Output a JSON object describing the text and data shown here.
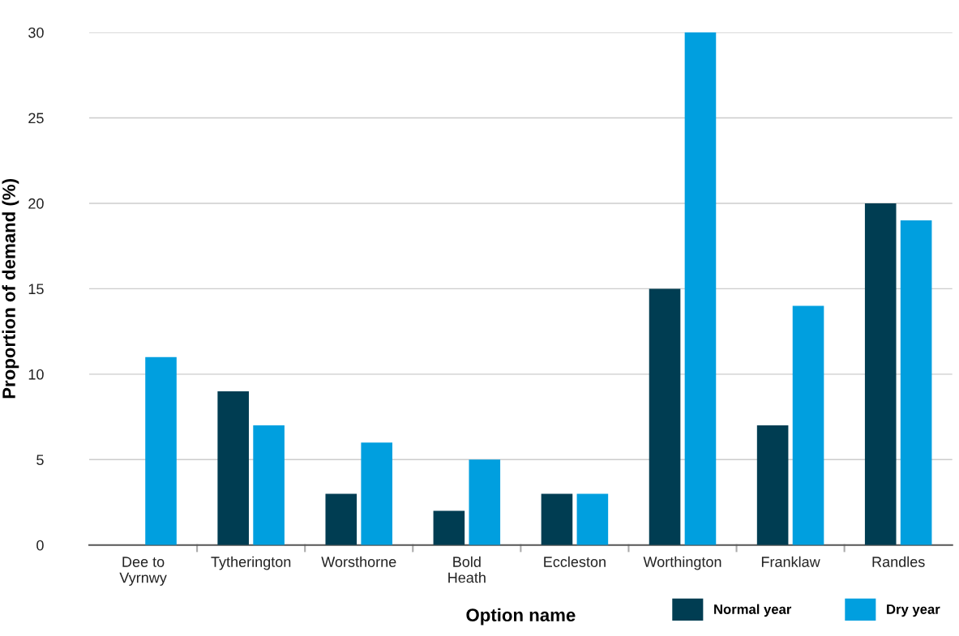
{
  "chart_data": {
    "type": "bar",
    "xlabel": "Option name",
    "ylabel": "Proportion of demand (%)",
    "categories": [
      "Dee to\nVyrnwy",
      "Tytherington",
      "Worsthorne",
      "Bold\nHeath",
      "Eccleston",
      "Worthington",
      "Franklaw",
      "Randles"
    ],
    "series": [
      {
        "name": "Normal year",
        "color": "#003d52",
        "values": [
          0,
          9,
          3,
          2,
          3,
          15,
          7,
          20
        ]
      },
      {
        "name": "Dry year",
        "color": "#009fdf",
        "values": [
          11,
          7,
          6,
          5,
          3,
          30,
          14,
          19
        ]
      }
    ],
    "ylim": [
      0,
      30
    ],
    "yticks": [
      0,
      5,
      10,
      15,
      20,
      25,
      30
    ],
    "grid": "y",
    "legend": "bottom right"
  }
}
